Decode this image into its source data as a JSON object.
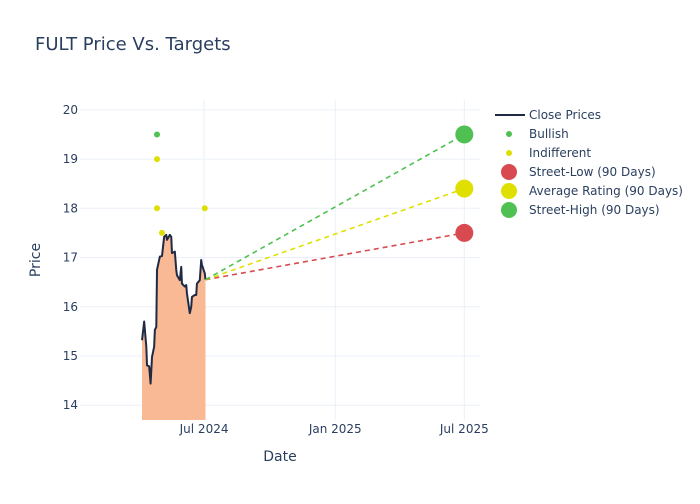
{
  "chart_data": {
    "type": "line",
    "title": "FULT Price Vs. Targets",
    "xlabel": "Date",
    "ylabel": "Price",
    "xlim": [
      "2024-01-09",
      "2025-07-23"
    ],
    "ylim": [
      13.7,
      20.2
    ],
    "x_ticks": [
      {
        "date": "2024-07-01",
        "label": "Jul 2024"
      },
      {
        "date": "2025-01-01",
        "label": "Jan 2025"
      },
      {
        "date": "2025-07-01",
        "label": "Jul 2025"
      }
    ],
    "y_ticks": [
      14,
      15,
      16,
      17,
      18,
      19,
      20
    ],
    "grid": true,
    "legend_placement": "right",
    "colors": {
      "close": "#1f2a44",
      "fill": "#f9b994",
      "bullish": "#4fc152",
      "indifferent": "#dede00",
      "low": "#d94a50",
      "average": "#e0e000",
      "high": "#4fc152",
      "axis_text": "#2a3f5f",
      "grid": "#ebf0f8"
    },
    "series": [
      {
        "name": "Close Prices",
        "points": [
          [
            "2024-04-05",
            15.32
          ],
          [
            "2024-04-08",
            15.7
          ],
          [
            "2024-04-11",
            15.19
          ],
          [
            "2024-04-12",
            14.81
          ],
          [
            "2024-04-15",
            14.79
          ],
          [
            "2024-04-17",
            14.44
          ],
          [
            "2024-04-19",
            14.98
          ],
          [
            "2024-04-22",
            15.19
          ],
          [
            "2024-04-23",
            15.53
          ],
          [
            "2024-04-25",
            15.59
          ],
          [
            "2024-04-26",
            16.75
          ],
          [
            "2024-04-30",
            17.02
          ],
          [
            "2024-05-03",
            17.03
          ],
          [
            "2024-05-06",
            17.42
          ],
          [
            "2024-05-09",
            17.46
          ],
          [
            "2024-05-10",
            17.36
          ],
          [
            "2024-05-14",
            17.46
          ],
          [
            "2024-05-16",
            17.42
          ],
          [
            "2024-05-17",
            17.09
          ],
          [
            "2024-05-21",
            17.12
          ],
          [
            "2024-05-23",
            16.75
          ],
          [
            "2024-05-24",
            16.64
          ],
          [
            "2024-05-28",
            16.54
          ],
          [
            "2024-05-30",
            16.81
          ],
          [
            "2024-05-31",
            16.47
          ],
          [
            "2024-06-04",
            16.41
          ],
          [
            "2024-06-06",
            16.44
          ],
          [
            "2024-06-07",
            16.27
          ],
          [
            "2024-06-11",
            15.87
          ],
          [
            "2024-06-13",
            16.0
          ],
          [
            "2024-06-14",
            16.2
          ],
          [
            "2024-06-18",
            16.24
          ],
          [
            "2024-06-20",
            16.24
          ],
          [
            "2024-06-21",
            16.47
          ],
          [
            "2024-06-25",
            16.54
          ],
          [
            "2024-06-27",
            16.95
          ],
          [
            "2024-06-28",
            16.85
          ],
          [
            "2024-07-02",
            16.68
          ],
          [
            "2024-07-03",
            16.55
          ]
        ]
      },
      {
        "name": "Bullish",
        "points": [
          [
            "2024-04-26",
            19.5
          ]
        ]
      },
      {
        "name": "Indifferent",
        "points": [
          [
            "2024-04-26",
            19.0
          ],
          [
            "2024-04-26",
            18.0
          ],
          [
            "2024-05-03",
            17.5
          ],
          [
            "2024-07-02",
            18.0
          ]
        ]
      },
      {
        "name": "Street-Low (90 Days)",
        "start": [
          "2024-07-03",
          16.55
        ],
        "end": [
          "2025-07-01",
          17.5
        ]
      },
      {
        "name": "Average Rating (90 Days)",
        "start": [
          "2024-07-03",
          16.55
        ],
        "end": [
          "2025-07-01",
          18.4
        ]
      },
      {
        "name": "Street-High (90 Days)",
        "start": [
          "2024-07-03",
          16.55
        ],
        "end": [
          "2025-07-01",
          19.5
        ]
      }
    ]
  }
}
